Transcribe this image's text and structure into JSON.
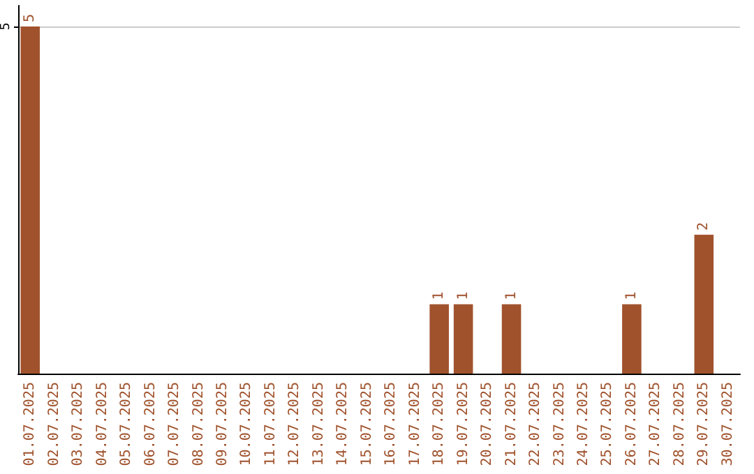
{
  "chart_data": {
    "type": "bar",
    "categories": [
      "01.07.2025",
      "02.07.2025",
      "03.07.2025",
      "04.07.2025",
      "05.07.2025",
      "06.07.2025",
      "07.07.2025",
      "08.07.2025",
      "09.07.2025",
      "10.07.2025",
      "11.07.2025",
      "12.07.2025",
      "13.07.2025",
      "14.07.2025",
      "15.07.2025",
      "16.07.2025",
      "17.07.2025",
      "18.07.2025",
      "19.07.2025",
      "20.07.2025",
      "21.07.2025",
      "22.07.2025",
      "23.07.2025",
      "24.07.2025",
      "25.07.2025",
      "26.07.2025",
      "27.07.2025",
      "28.07.2025",
      "29.07.2025",
      "30.07.2025"
    ],
    "values": [
      5,
      0,
      0,
      0,
      0,
      0,
      0,
      0,
      0,
      0,
      0,
      0,
      0,
      0,
      0,
      0,
      0,
      1,
      1,
      0,
      1,
      0,
      0,
      0,
      0,
      1,
      0,
      0,
      2,
      0
    ],
    "value_labels": [
      "5",
      null,
      null,
      null,
      null,
      null,
      null,
      null,
      null,
      null,
      null,
      null,
      null,
      null,
      null,
      null,
      null,
      "1",
      "1",
      null,
      "1",
      null,
      null,
      null,
      null,
      "1",
      null,
      null,
      "2",
      null
    ],
    "color": "#a0522d",
    "ylim": [
      0,
      5.3
    ],
    "yticks": [
      5
    ],
    "grid": "y"
  }
}
